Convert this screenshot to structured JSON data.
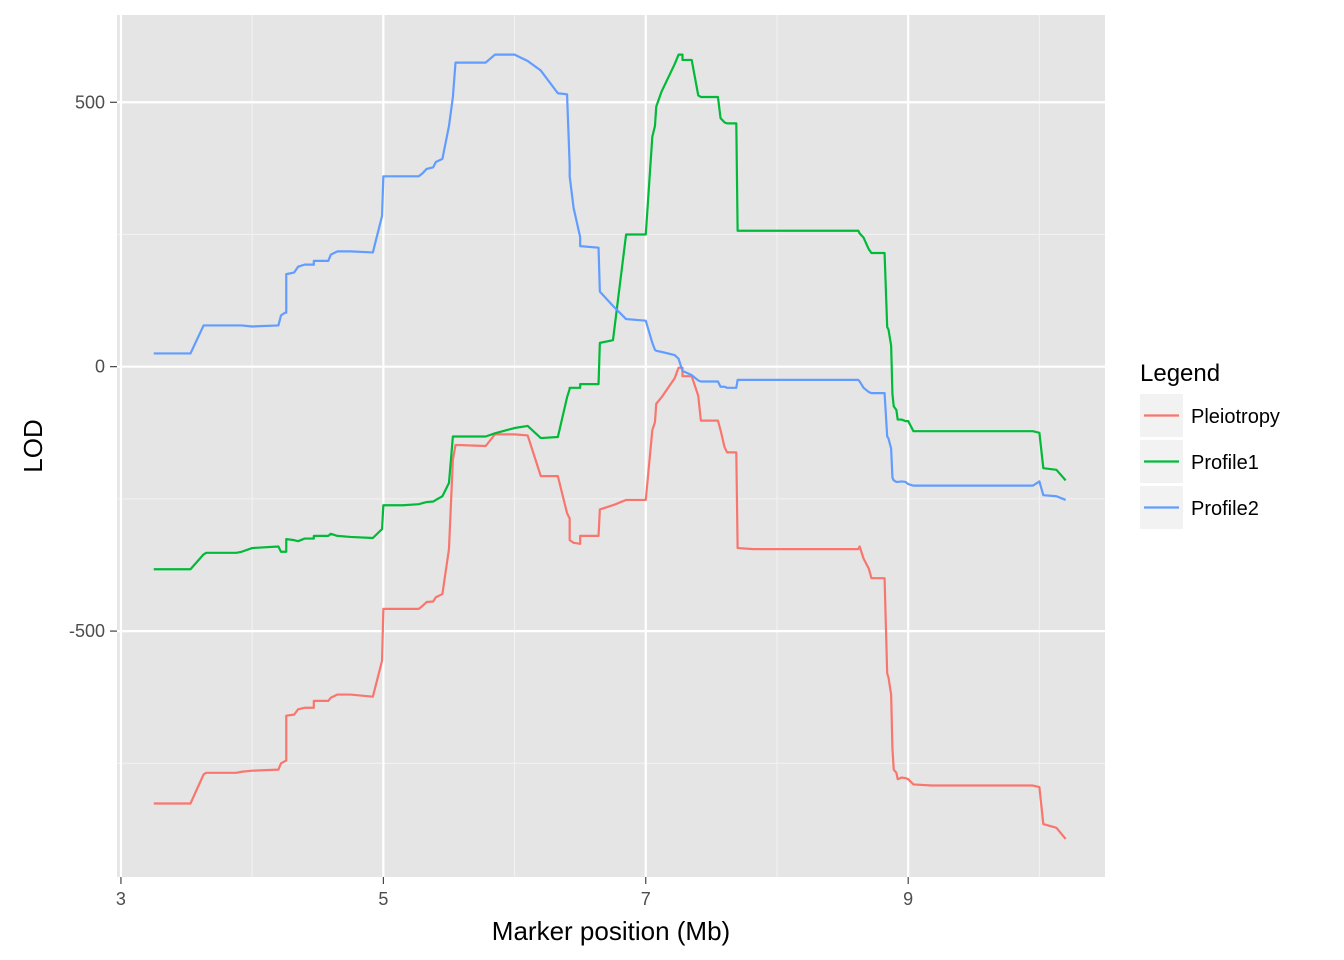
{
  "chart_data": {
    "type": "line",
    "xlabel": "Marker position (Mb)",
    "ylabel": "LOD",
    "xlim": [
      2.97,
      10.5
    ],
    "ylim": [
      -965,
      665
    ],
    "x_ticks": [
      3,
      5,
      7,
      9
    ],
    "x_tick_labels": [
      "3",
      "5",
      "7",
      "9"
    ],
    "y_ticks": [
      -500,
      0,
      500
    ],
    "y_tick_labels": [
      "-500",
      "0",
      "500"
    ],
    "grid": true,
    "background": "#e5e5e5",
    "legend": {
      "title": "Legend",
      "placement": "right",
      "entries": [
        "Pleiotropy",
        "Profile1",
        "Profile2"
      ]
    },
    "series": [
      {
        "name": "Pleiotropy",
        "color": "#F8766D",
        "points": [
          [
            3.25,
            -826
          ],
          [
            3.53,
            -826
          ],
          [
            3.63,
            -771
          ],
          [
            3.65,
            -768
          ],
          [
            3.88,
            -768
          ],
          [
            3.92,
            -766
          ],
          [
            4.0,
            -764
          ],
          [
            4.2,
            -762
          ],
          [
            4.22,
            -750
          ],
          [
            4.25,
            -746
          ],
          [
            4.26,
            -745
          ],
          [
            4.26,
            -660
          ],
          [
            4.32,
            -658
          ],
          [
            4.35,
            -648
          ],
          [
            4.4,
            -645
          ],
          [
            4.47,
            -645
          ],
          [
            4.47,
            -632
          ],
          [
            4.58,
            -632
          ],
          [
            4.6,
            -626
          ],
          [
            4.65,
            -620
          ],
          [
            4.75,
            -620
          ],
          [
            4.92,
            -624
          ],
          [
            4.99,
            -556
          ],
          [
            5.0,
            -458
          ],
          [
            5.05,
            -458
          ],
          [
            5.15,
            -458
          ],
          [
            5.27,
            -458
          ],
          [
            5.3,
            -452
          ],
          [
            5.33,
            -445
          ],
          [
            5.38,
            -444
          ],
          [
            5.4,
            -436
          ],
          [
            5.45,
            -430
          ],
          [
            5.5,
            -345
          ],
          [
            5.53,
            -176
          ],
          [
            5.55,
            -148
          ],
          [
            5.78,
            -150
          ],
          [
            5.85,
            -128
          ],
          [
            6.0,
            -128
          ],
          [
            6.1,
            -130
          ],
          [
            6.2,
            -207
          ],
          [
            6.33,
            -207
          ],
          [
            6.4,
            -277
          ],
          [
            6.42,
            -287
          ],
          [
            6.42,
            -328
          ],
          [
            6.45,
            -333
          ],
          [
            6.5,
            -335
          ],
          [
            6.5,
            -320
          ],
          [
            6.64,
            -320
          ],
          [
            6.65,
            -270
          ],
          [
            6.75,
            -262
          ],
          [
            6.85,
            -252
          ],
          [
            7.0,
            -252
          ],
          [
            7.05,
            -120
          ],
          [
            7.07,
            -105
          ],
          [
            7.08,
            -70
          ],
          [
            7.12,
            -58
          ],
          [
            7.22,
            -22
          ],
          [
            7.25,
            -2
          ],
          [
            7.28,
            -2
          ],
          [
            7.28,
            -18
          ],
          [
            7.35,
            -18
          ],
          [
            7.4,
            -55
          ],
          [
            7.42,
            -102
          ],
          [
            7.55,
            -102
          ],
          [
            7.57,
            -120
          ],
          [
            7.6,
            -152
          ],
          [
            7.62,
            -162
          ],
          [
            7.69,
            -162
          ],
          [
            7.7,
            -343
          ],
          [
            7.82,
            -345
          ],
          [
            8.62,
            -345
          ],
          [
            8.63,
            -340
          ],
          [
            8.66,
            -363
          ],
          [
            8.7,
            -382
          ],
          [
            8.72,
            -400
          ],
          [
            8.82,
            -400
          ],
          [
            8.84,
            -580
          ],
          [
            8.85,
            -588
          ],
          [
            8.87,
            -620
          ],
          [
            8.88,
            -722
          ],
          [
            8.89,
            -762
          ],
          [
            8.91,
            -768
          ],
          [
            8.92,
            -780
          ],
          [
            8.95,
            -777
          ],
          [
            8.98,
            -778
          ],
          [
            9.0,
            -780
          ],
          [
            9.04,
            -790
          ],
          [
            9.18,
            -792
          ],
          [
            9.95,
            -792
          ],
          [
            10.0,
            -795
          ],
          [
            10.03,
            -865
          ],
          [
            10.13,
            -872
          ],
          [
            10.2,
            -893
          ]
        ]
      },
      {
        "name": "Profile1",
        "color": "#00BA38",
        "points": [
          [
            3.25,
            -383
          ],
          [
            3.53,
            -383
          ],
          [
            3.63,
            -355
          ],
          [
            3.65,
            -352
          ],
          [
            3.88,
            -352
          ],
          [
            3.92,
            -350
          ],
          [
            4.0,
            -343
          ],
          [
            4.2,
            -340
          ],
          [
            4.22,
            -350
          ],
          [
            4.25,
            -350
          ],
          [
            4.26,
            -350
          ],
          [
            4.26,
            -326
          ],
          [
            4.32,
            -328
          ],
          [
            4.35,
            -330
          ],
          [
            4.4,
            -325
          ],
          [
            4.47,
            -325
          ],
          [
            4.47,
            -320
          ],
          [
            4.58,
            -320
          ],
          [
            4.6,
            -316
          ],
          [
            4.65,
            -320
          ],
          [
            4.75,
            -322
          ],
          [
            4.92,
            -324
          ],
          [
            4.99,
            -307
          ],
          [
            5.0,
            -262
          ],
          [
            5.05,
            -262
          ],
          [
            5.15,
            -262
          ],
          [
            5.27,
            -260
          ],
          [
            5.3,
            -258
          ],
          [
            5.33,
            -256
          ],
          [
            5.38,
            -255
          ],
          [
            5.4,
            -252
          ],
          [
            5.45,
            -245
          ],
          [
            5.5,
            -220
          ],
          [
            5.53,
            -132
          ],
          [
            5.55,
            -132
          ],
          [
            5.78,
            -132
          ],
          [
            5.85,
            -126
          ],
          [
            6.0,
            -116
          ],
          [
            6.1,
            -112
          ],
          [
            6.2,
            -135
          ],
          [
            6.33,
            -133
          ],
          [
            6.4,
            -58
          ],
          [
            6.42,
            -42
          ],
          [
            6.42,
            -40
          ],
          [
            6.45,
            -40
          ],
          [
            6.5,
            -40
          ],
          [
            6.5,
            -33
          ],
          [
            6.64,
            -33
          ],
          [
            6.65,
            45
          ],
          [
            6.75,
            50
          ],
          [
            6.85,
            250
          ],
          [
            7.0,
            250
          ],
          [
            7.05,
            435
          ],
          [
            7.07,
            455
          ],
          [
            7.08,
            492
          ],
          [
            7.12,
            520
          ],
          [
            7.22,
            572
          ],
          [
            7.25,
            590
          ],
          [
            7.28,
            590
          ],
          [
            7.28,
            580
          ],
          [
            7.35,
            580
          ],
          [
            7.4,
            513
          ],
          [
            7.42,
            510
          ],
          [
            7.55,
            510
          ],
          [
            7.57,
            470
          ],
          [
            7.6,
            462
          ],
          [
            7.62,
            460
          ],
          [
            7.69,
            460
          ],
          [
            7.7,
            257
          ],
          [
            7.82,
            257
          ],
          [
            8.62,
            257
          ],
          [
            8.63,
            252
          ],
          [
            8.66,
            244
          ],
          [
            8.7,
            222
          ],
          [
            8.72,
            215
          ],
          [
            8.82,
            215
          ],
          [
            8.84,
            75
          ],
          [
            8.85,
            70
          ],
          [
            8.87,
            40
          ],
          [
            8.88,
            -52
          ],
          [
            8.89,
            -75
          ],
          [
            8.91,
            -82
          ],
          [
            8.92,
            -100
          ],
          [
            8.95,
            -100
          ],
          [
            8.98,
            -103
          ],
          [
            9.0,
            -103
          ],
          [
            9.04,
            -122
          ],
          [
            9.18,
            -122
          ],
          [
            9.95,
            -122
          ],
          [
            10.0,
            -125
          ],
          [
            10.03,
            -192
          ],
          [
            10.13,
            -195
          ],
          [
            10.2,
            -215
          ]
        ]
      },
      {
        "name": "Profile2",
        "color": "#619CFF",
        "points": [
          [
            3.25,
            25
          ],
          [
            3.53,
            25
          ],
          [
            3.63,
            78
          ],
          [
            3.65,
            78
          ],
          [
            3.88,
            78
          ],
          [
            3.92,
            78
          ],
          [
            4.0,
            76
          ],
          [
            4.2,
            78
          ],
          [
            4.22,
            97
          ],
          [
            4.25,
            102
          ],
          [
            4.26,
            102
          ],
          [
            4.26,
            175
          ],
          [
            4.32,
            178
          ],
          [
            4.35,
            189
          ],
          [
            4.4,
            193
          ],
          [
            4.47,
            193
          ],
          [
            4.47,
            200
          ],
          [
            4.58,
            200
          ],
          [
            4.6,
            212
          ],
          [
            4.65,
            218
          ],
          [
            4.75,
            218
          ],
          [
            4.92,
            216
          ],
          [
            4.99,
            285
          ],
          [
            5.0,
            360
          ],
          [
            5.05,
            360
          ],
          [
            5.15,
            360
          ],
          [
            5.27,
            360
          ],
          [
            5.3,
            366
          ],
          [
            5.33,
            374
          ],
          [
            5.38,
            377
          ],
          [
            5.4,
            387
          ],
          [
            5.45,
            393
          ],
          [
            5.5,
            455
          ],
          [
            5.53,
            510
          ],
          [
            5.55,
            575
          ],
          [
            5.78,
            575
          ],
          [
            5.85,
            590
          ],
          [
            6.0,
            590
          ],
          [
            6.1,
            578
          ],
          [
            6.2,
            560
          ],
          [
            6.33,
            517
          ],
          [
            6.4,
            515
          ],
          [
            6.42,
            381
          ],
          [
            6.42,
            360
          ],
          [
            6.45,
            300
          ],
          [
            6.5,
            245
          ],
          [
            6.5,
            228
          ],
          [
            6.64,
            225
          ],
          [
            6.65,
            142
          ],
          [
            6.75,
            115
          ],
          [
            6.85,
            90
          ],
          [
            7.0,
            87
          ],
          [
            7.05,
            45
          ],
          [
            7.07,
            32
          ],
          [
            7.08,
            30
          ],
          [
            7.12,
            28
          ],
          [
            7.22,
            22
          ],
          [
            7.25,
            15
          ],
          [
            7.28,
            -8
          ],
          [
            7.28,
            -8
          ],
          [
            7.35,
            -16
          ],
          [
            7.4,
            -26
          ],
          [
            7.42,
            -28
          ],
          [
            7.55,
            -28
          ],
          [
            7.57,
            -38
          ],
          [
            7.6,
            -38
          ],
          [
            7.62,
            -40
          ],
          [
            7.69,
            -40
          ],
          [
            7.7,
            -25
          ],
          [
            7.82,
            -25
          ],
          [
            8.62,
            -25
          ],
          [
            8.63,
            -28
          ],
          [
            8.66,
            -40
          ],
          [
            8.7,
            -48
          ],
          [
            8.72,
            -50
          ],
          [
            8.82,
            -50
          ],
          [
            8.84,
            -132
          ],
          [
            8.85,
            -136
          ],
          [
            8.87,
            -155
          ],
          [
            8.88,
            -210
          ],
          [
            8.89,
            -215
          ],
          [
            8.91,
            -218
          ],
          [
            8.92,
            -218
          ],
          [
            8.95,
            -217
          ],
          [
            8.98,
            -218
          ],
          [
            9.0,
            -222
          ],
          [
            9.04,
            -225
          ],
          [
            9.18,
            -225
          ],
          [
            9.95,
            -225
          ],
          [
            10.0,
            -217
          ],
          [
            10.03,
            -243
          ],
          [
            10.13,
            -245
          ],
          [
            10.2,
            -252
          ]
        ]
      }
    ]
  }
}
